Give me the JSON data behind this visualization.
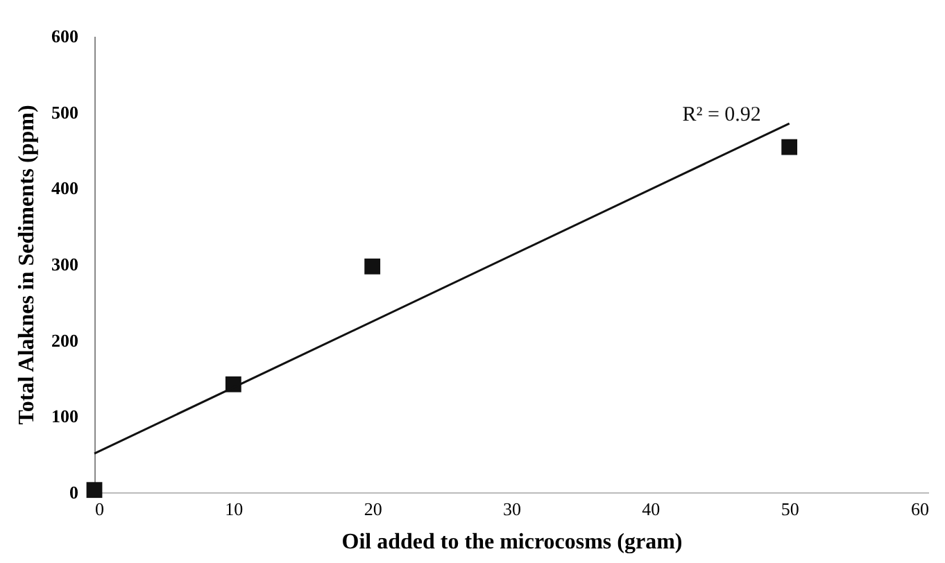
{
  "chart_data": {
    "type": "scatter",
    "xlabel": "Oil added to the microcosms (gram)",
    "ylabel": "Total Alaknes in Sediments (ppm)",
    "x": [
      0,
      10,
      20,
      50
    ],
    "series": [
      {
        "color": "#111111",
        "marker": "square",
        "values": [
          3,
          142,
          297,
          454
        ]
      },
      {
        "type": "line",
        "color": "#111111",
        "x": [
          0,
          50
        ],
        "values": [
          51,
          485
        ]
      }
    ],
    "xlim": [
      0,
      60
    ],
    "xticks": [
      0,
      10,
      20,
      30,
      40,
      50,
      60
    ],
    "ylim": [
      0,
      600
    ],
    "yticks": [
      0,
      100,
      200,
      300,
      400,
      500,
      600
    ],
    "grid": false,
    "annotations": [
      "R² = 0.92"
    ]
  }
}
